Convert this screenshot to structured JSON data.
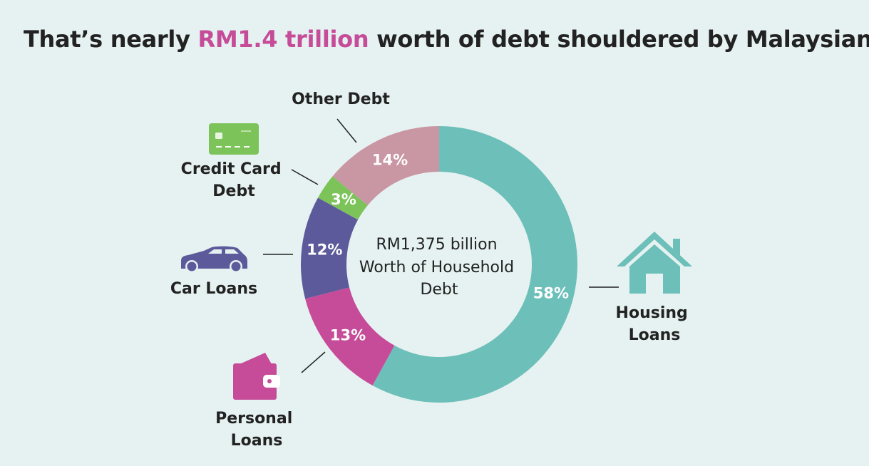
{
  "title": {
    "before": "That’s nearly ",
    "highlight": "RM1.4 trillion",
    "after": " worth of debt shouldered by Malaysians"
  },
  "colors": {
    "highlight": "#c64b98",
    "housing": "#6dbfb9",
    "personal": "#c64b98",
    "car": "#5c5a9b",
    "credit": "#7cc35a",
    "other": "#c996a4",
    "background": "#e6f2f1"
  },
  "chart_data": {
    "type": "pie",
    "donut": true,
    "center_label": [
      "RM1,375 billion",
      "Worth of Household",
      "Debt"
    ],
    "slices": [
      {
        "key": "housing",
        "label": [
          "Housing",
          "Loans"
        ],
        "value": 58,
        "value_label": "58%",
        "color": "#6dbfb9",
        "icon": "house-icon"
      },
      {
        "key": "personal",
        "label": [
          "Personal",
          "Loans"
        ],
        "value": 13,
        "value_label": "13%",
        "color": "#c64b98",
        "icon": "wallet-icon"
      },
      {
        "key": "car",
        "label": [
          "Car Loans"
        ],
        "value": 12,
        "value_label": "12%",
        "color": "#5c5a9b",
        "icon": "car-icon"
      },
      {
        "key": "credit",
        "label": [
          "Credit Card",
          "Debt"
        ],
        "value": 3,
        "value_label": "3%",
        "color": "#7cc35a",
        "icon": "credit-card-icon"
      },
      {
        "key": "other",
        "label": [
          "Other Debt"
        ],
        "value": 14,
        "value_label": "14%",
        "color": "#c996a4",
        "icon": ""
      }
    ]
  }
}
